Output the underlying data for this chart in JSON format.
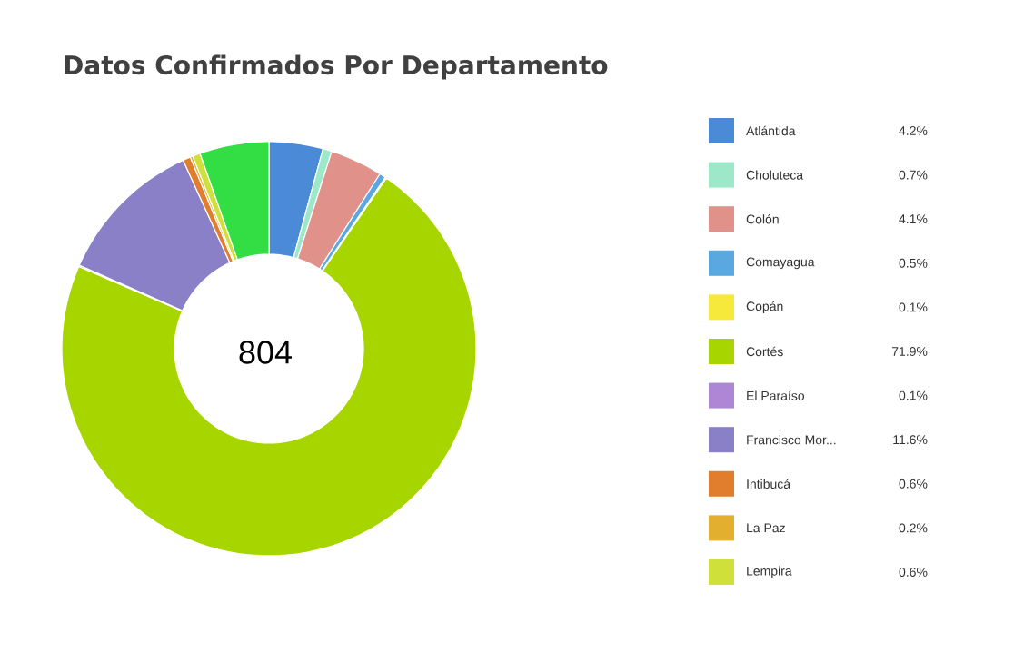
{
  "chart_data": {
    "type": "donut",
    "title": "Datos Confirmados Por Departamento",
    "categories": [
      "Atlántida",
      "Choluteca",
      "Colón",
      "Comayagua",
      "Copán",
      "Cortés",
      "El Paraíso",
      "Francisco Mor...",
      "Intibucá",
      "La Paz",
      "Lempira",
      null
    ],
    "values": [
      4.2,
      0.7,
      4.1,
      0.5,
      0.1,
      71.9,
      0.1,
      11.6,
      0.6,
      0.2,
      0.6,
      5.4
    ],
    "colors": [
      "#4a8ad6",
      "#9de8c8",
      "#e0928a",
      "#5aa8e0",
      "#f6e93c",
      "#a7d500",
      "#ad86d6",
      "#8a80c8",
      "#e07e2e",
      "#e2b02e",
      "#cfe03a",
      "#33dd44"
    ],
    "value_labels": [
      "4.2%",
      "0.7%",
      "4.1%",
      "0.5%",
      "0.1%",
      "71.9%",
      "0.1%",
      "11.6%",
      "0.6%",
      "0.2%",
      "0.6%",
      null
    ],
    "annotations": [
      "804"
    ],
    "legend": "right"
  }
}
